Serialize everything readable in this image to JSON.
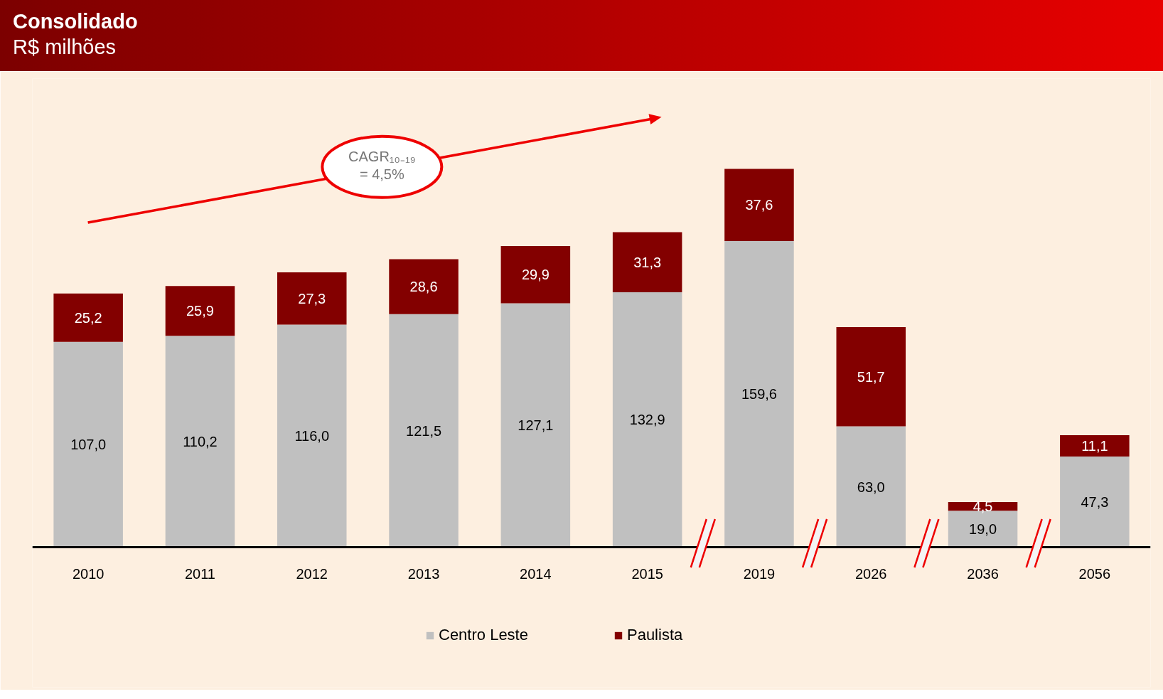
{
  "chart_data": {
    "type": "bar",
    "title": "Consolidado",
    "subtitle": "R$ milhões",
    "categories": [
      "2010",
      "2011",
      "2012",
      "2013",
      "2014",
      "2015",
      "2019",
      "2026",
      "2036",
      "2056"
    ],
    "stacked": true,
    "series": [
      {
        "name": "Centro Leste",
        "color": "#c0c0c0",
        "values": [
          107.0,
          110.2,
          116.0,
          121.5,
          127.1,
          132.9,
          159.6,
          63.0,
          19.0,
          47.3
        ],
        "value_labels": [
          "107,0",
          "110,2",
          "116,0",
          "121,5",
          "127,1",
          "132,9",
          "159,6",
          "63,0",
          "19,0",
          "47,3"
        ]
      },
      {
        "name": "Paulista",
        "color": "#830000",
        "values": [
          25.2,
          25.9,
          27.3,
          28.6,
          29.9,
          31.3,
          37.6,
          51.7,
          4.5,
          11.1
        ],
        "value_labels": [
          "25,2",
          "25,9",
          "27,3",
          "28,6",
          "29,9",
          "31,3",
          "37,6",
          "51,7",
          "4,5",
          "11,1"
        ]
      }
    ],
    "legend": "bottom",
    "annotations": [
      "CAGR₁₀₋₁₉\n= 4,5%"
    ]
  }
}
